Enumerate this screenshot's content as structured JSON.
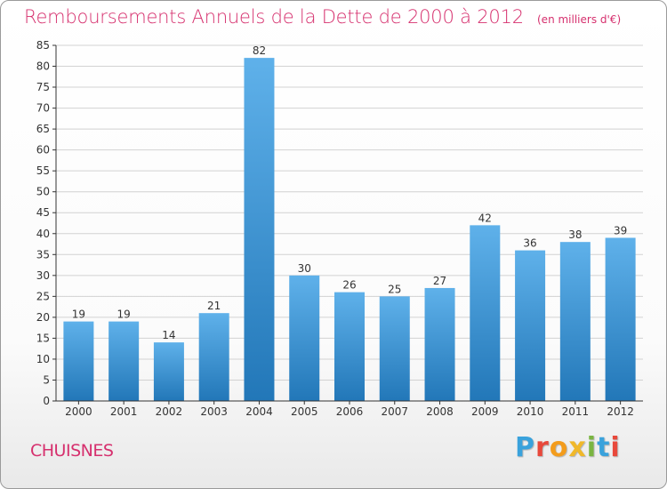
{
  "header": {
    "title": "Remboursements Annuels de la Dette de 2000 à 2012",
    "unit": "(en milliers d'€)"
  },
  "footer": {
    "commune": "CHUISNES"
  },
  "logo": {
    "letters": [
      "P",
      "r",
      "o",
      "x",
      "i",
      "t",
      "i"
    ],
    "colors": [
      "#3aa2dc",
      "#e8483b",
      "#f39c1c",
      "#f0b82a",
      "#7ab541",
      "#3aa2dc",
      "#e8483b"
    ]
  },
  "colors": {
    "bar_top": "#5fb1ea",
    "bar_bottom": "#2277b8",
    "grid": "#d2d2d2",
    "axis": "#333333",
    "title": "#d6306e"
  },
  "chart_data": {
    "type": "bar",
    "categories": [
      "2000",
      "2001",
      "2002",
      "2003",
      "2004",
      "2005",
      "2006",
      "2007",
      "2008",
      "2009",
      "2010",
      "2011",
      "2012"
    ],
    "values": [
      19,
      19,
      14,
      21,
      82,
      30,
      26,
      25,
      27,
      42,
      36,
      38,
      39
    ],
    "ylim": [
      0,
      85
    ],
    "yticks": [
      0,
      5,
      10,
      15,
      20,
      25,
      30,
      35,
      40,
      45,
      50,
      55,
      60,
      65,
      70,
      75,
      80,
      85
    ],
    "grid": true,
    "grid_axis": "y",
    "legend": "none",
    "data_labels": true
  }
}
